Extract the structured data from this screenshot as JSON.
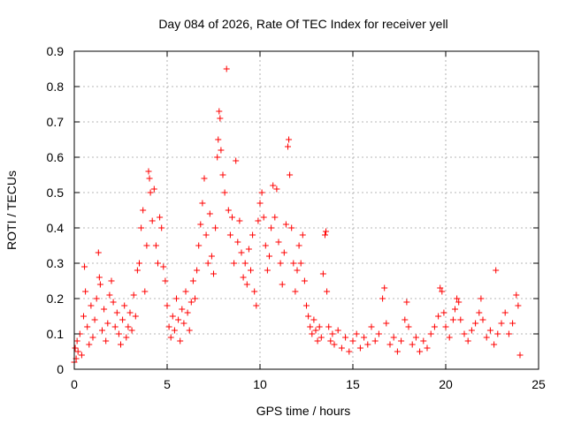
{
  "chart_data": {
    "type": "scatter",
    "title": "Day 084 of 2026, Rate Of TEC Index for receiver yell",
    "xlabel": "GPS time / hours",
    "ylabel": "ROTI / TECUs",
    "xlim": [
      0,
      25
    ],
    "ylim": [
      0,
      0.9
    ],
    "xticks": [
      0,
      5,
      10,
      15,
      20,
      25
    ],
    "yticks": [
      0,
      0.1,
      0.2,
      0.3,
      0.4,
      0.5,
      0.6,
      0.7,
      0.8,
      0.9
    ],
    "xtick_labels": [
      "0",
      "5",
      "10",
      "15",
      "20",
      "25"
    ],
    "ytick_labels": [
      "0",
      "0.1",
      "0.2",
      "0.3",
      "0.4",
      "0.5",
      "0.6",
      "0.7",
      "0.8",
      "0.9"
    ],
    "grid": true,
    "marker": "+",
    "color": "#ff0000",
    "series": [
      {
        "name": "ROTI",
        "points": [
          [
            0.0,
            0.02
          ],
          [
            0.05,
            0.06
          ],
          [
            0.1,
            0.03
          ],
          [
            0.15,
            0.08
          ],
          [
            0.2,
            0.05
          ],
          [
            0.3,
            0.1
          ],
          [
            0.4,
            0.04
          ],
          [
            0.5,
            0.15
          ],
          [
            0.55,
            0.29
          ],
          [
            0.6,
            0.22
          ],
          [
            0.7,
            0.12
          ],
          [
            0.8,
            0.07
          ],
          [
            0.9,
            0.18
          ],
          [
            1.0,
            0.09
          ],
          [
            1.1,
            0.14
          ],
          [
            1.2,
            0.2
          ],
          [
            1.3,
            0.33
          ],
          [
            1.35,
            0.26
          ],
          [
            1.4,
            0.24
          ],
          [
            1.5,
            0.11
          ],
          [
            1.6,
            0.17
          ],
          [
            1.7,
            0.08
          ],
          [
            1.8,
            0.13
          ],
          [
            1.9,
            0.21
          ],
          [
            2.0,
            0.25
          ],
          [
            2.1,
            0.19
          ],
          [
            2.2,
            0.12
          ],
          [
            2.3,
            0.16
          ],
          [
            2.4,
            0.1
          ],
          [
            2.5,
            0.07
          ],
          [
            2.6,
            0.14
          ],
          [
            2.7,
            0.18
          ],
          [
            2.8,
            0.09
          ],
          [
            2.9,
            0.12
          ],
          [
            3.0,
            0.16
          ],
          [
            3.1,
            0.11
          ],
          [
            3.2,
            0.21
          ],
          [
            3.3,
            0.15
          ],
          [
            3.4,
            0.28
          ],
          [
            3.5,
            0.3
          ],
          [
            3.6,
            0.4
          ],
          [
            3.7,
            0.45
          ],
          [
            3.8,
            0.22
          ],
          [
            3.9,
            0.35
          ],
          [
            4.0,
            0.56
          ],
          [
            4.05,
            0.54
          ],
          [
            4.1,
            0.5
          ],
          [
            4.2,
            0.42
          ],
          [
            4.3,
            0.51
          ],
          [
            4.4,
            0.35
          ],
          [
            4.5,
            0.3
          ],
          [
            4.6,
            0.43
          ],
          [
            4.7,
            0.4
          ],
          [
            4.8,
            0.29
          ],
          [
            4.9,
            0.25
          ],
          [
            5.0,
            0.18
          ],
          [
            5.1,
            0.12
          ],
          [
            5.2,
            0.09
          ],
          [
            5.3,
            0.15
          ],
          [
            5.4,
            0.11
          ],
          [
            5.5,
            0.2
          ],
          [
            5.6,
            0.14
          ],
          [
            5.7,
            0.08
          ],
          [
            5.8,
            0.17
          ],
          [
            5.9,
            0.13
          ],
          [
            6.0,
            0.22
          ],
          [
            6.1,
            0.16
          ],
          [
            6.2,
            0.11
          ],
          [
            6.3,
            0.19
          ],
          [
            6.4,
            0.25
          ],
          [
            6.5,
            0.2
          ],
          [
            6.6,
            0.28
          ],
          [
            6.7,
            0.35
          ],
          [
            6.8,
            0.41
          ],
          [
            6.9,
            0.47
          ],
          [
            7.0,
            0.54
          ],
          [
            7.1,
            0.38
          ],
          [
            7.2,
            0.3
          ],
          [
            7.3,
            0.44
          ],
          [
            7.4,
            0.32
          ],
          [
            7.5,
            0.27
          ],
          [
            7.6,
            0.4
          ],
          [
            7.7,
            0.6
          ],
          [
            7.75,
            0.65
          ],
          [
            7.8,
            0.73
          ],
          [
            7.85,
            0.71
          ],
          [
            7.9,
            0.62
          ],
          [
            8.0,
            0.55
          ],
          [
            8.1,
            0.5
          ],
          [
            8.2,
            0.85
          ],
          [
            8.3,
            0.45
          ],
          [
            8.4,
            0.38
          ],
          [
            8.5,
            0.43
          ],
          [
            8.6,
            0.3
          ],
          [
            8.7,
            0.59
          ],
          [
            8.8,
            0.36
          ],
          [
            8.9,
            0.42
          ],
          [
            9.0,
            0.33
          ],
          [
            9.1,
            0.26
          ],
          [
            9.2,
            0.3
          ],
          [
            9.3,
            0.24
          ],
          [
            9.4,
            0.34
          ],
          [
            9.5,
            0.28
          ],
          [
            9.6,
            0.38
          ],
          [
            9.7,
            0.22
          ],
          [
            9.8,
            0.18
          ],
          [
            9.9,
            0.42
          ],
          [
            10.0,
            0.47
          ],
          [
            10.1,
            0.5
          ],
          [
            10.2,
            0.43
          ],
          [
            10.3,
            0.35
          ],
          [
            10.4,
            0.28
          ],
          [
            10.5,
            0.32
          ],
          [
            10.6,
            0.4
          ],
          [
            10.7,
            0.52
          ],
          [
            10.8,
            0.43
          ],
          [
            10.9,
            0.51
          ],
          [
            11.0,
            0.36
          ],
          [
            11.1,
            0.3
          ],
          [
            11.2,
            0.24
          ],
          [
            11.3,
            0.33
          ],
          [
            11.4,
            0.41
          ],
          [
            11.5,
            0.63
          ],
          [
            11.55,
            0.65
          ],
          [
            11.6,
            0.55
          ],
          [
            11.7,
            0.4
          ],
          [
            11.8,
            0.3
          ],
          [
            11.9,
            0.22
          ],
          [
            12.0,
            0.28
          ],
          [
            12.1,
            0.35
          ],
          [
            12.2,
            0.3
          ],
          [
            12.3,
            0.38
          ],
          [
            12.4,
            0.25
          ],
          [
            12.5,
            0.18
          ],
          [
            12.6,
            0.15
          ],
          [
            12.7,
            0.12
          ],
          [
            12.8,
            0.1
          ],
          [
            12.9,
            0.14
          ],
          [
            13.0,
            0.11
          ],
          [
            13.1,
            0.08
          ],
          [
            13.2,
            0.12
          ],
          [
            13.3,
            0.09
          ],
          [
            13.4,
            0.27
          ],
          [
            13.5,
            0.38
          ],
          [
            13.55,
            0.39
          ],
          [
            13.6,
            0.22
          ],
          [
            13.7,
            0.12
          ],
          [
            13.8,
            0.08
          ],
          [
            13.9,
            0.1
          ],
          [
            14.0,
            0.07
          ],
          [
            14.2,
            0.11
          ],
          [
            14.4,
            0.06
          ],
          [
            14.6,
            0.09
          ],
          [
            14.8,
            0.05
          ],
          [
            15.0,
            0.08
          ],
          [
            15.2,
            0.1
          ],
          [
            15.4,
            0.06
          ],
          [
            15.6,
            0.09
          ],
          [
            15.8,
            0.07
          ],
          [
            16.0,
            0.12
          ],
          [
            16.2,
            0.08
          ],
          [
            16.4,
            0.1
          ],
          [
            16.6,
            0.2
          ],
          [
            16.7,
            0.23
          ],
          [
            16.8,
            0.13
          ],
          [
            17.0,
            0.07
          ],
          [
            17.2,
            0.09
          ],
          [
            17.4,
            0.05
          ],
          [
            17.6,
            0.08
          ],
          [
            17.8,
            0.14
          ],
          [
            17.9,
            0.19
          ],
          [
            18.0,
            0.12
          ],
          [
            18.2,
            0.07
          ],
          [
            18.4,
            0.09
          ],
          [
            18.6,
            0.05
          ],
          [
            18.8,
            0.08
          ],
          [
            19.0,
            0.06
          ],
          [
            19.2,
            0.1
          ],
          [
            19.4,
            0.12
          ],
          [
            19.6,
            0.15
          ],
          [
            19.7,
            0.23
          ],
          [
            19.8,
            0.22
          ],
          [
            19.9,
            0.16
          ],
          [
            20.0,
            0.12
          ],
          [
            20.2,
            0.09
          ],
          [
            20.4,
            0.14
          ],
          [
            20.5,
            0.17
          ],
          [
            20.6,
            0.2
          ],
          [
            20.7,
            0.19
          ],
          [
            20.8,
            0.14
          ],
          [
            21.0,
            0.1
          ],
          [
            21.2,
            0.08
          ],
          [
            21.4,
            0.11
          ],
          [
            21.6,
            0.13
          ],
          [
            21.8,
            0.16
          ],
          [
            21.9,
            0.2
          ],
          [
            22.0,
            0.14
          ],
          [
            22.2,
            0.09
          ],
          [
            22.4,
            0.11
          ],
          [
            22.6,
            0.07
          ],
          [
            22.7,
            0.28
          ],
          [
            22.8,
            0.1
          ],
          [
            23.0,
            0.13
          ],
          [
            23.2,
            0.16
          ],
          [
            23.4,
            0.1
          ],
          [
            23.6,
            0.13
          ],
          [
            23.8,
            0.21
          ],
          [
            23.9,
            0.18
          ],
          [
            24.0,
            0.04
          ]
        ]
      }
    ]
  }
}
